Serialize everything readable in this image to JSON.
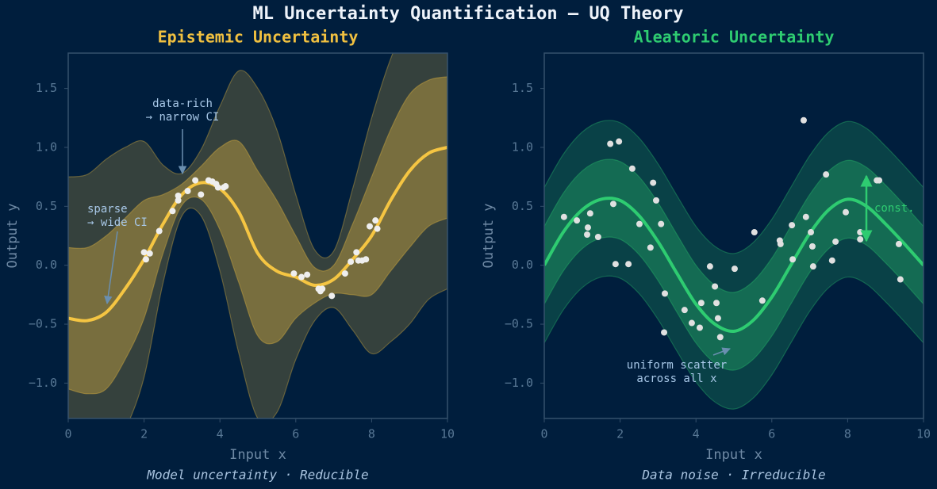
{
  "title": "ML Uncertainty Quantification  —  UQ Theory",
  "chart_data": [
    {
      "type": "line",
      "title": "Epistemic Uncertainty",
      "title_color": "#f0c040",
      "xlabel": "Input  x",
      "ylabel": "Output  y",
      "caption": "Model uncertainty  ·  Reducible",
      "x": [
        0,
        0.5,
        1,
        1.5,
        2,
        2.5,
        3,
        3.5,
        4,
        4.5,
        5,
        5.5,
        6,
        6.5,
        7,
        7.5,
        8,
        8.5,
        9,
        9.5,
        10
      ],
      "series": [
        {
          "color": "#f5c542",
          "values": [
            -0.45,
            -0.47,
            -0.4,
            -0.2,
            0.05,
            0.35,
            0.6,
            0.7,
            0.65,
            0.45,
            0.1,
            -0.05,
            -0.1,
            -0.17,
            -0.12,
            0.05,
            0.25,
            0.55,
            0.8,
            0.95,
            1.0
          ]
        }
      ],
      "bands": [
        {
          "color": "#f0c040",
          "opacity": 0.22,
          "lower": [
            -1.65,
            -1.71,
            -1.7,
            -1.4,
            -0.95,
            -0.15,
            0.42,
            0.42,
            -0.05,
            -0.75,
            -1.3,
            -1.25,
            -0.8,
            -0.47,
            -0.36,
            -0.55,
            -0.75,
            -0.65,
            -0.5,
            -0.29,
            -0.2
          ],
          "upper": [
            0.75,
            0.77,
            0.9,
            1.0,
            1.05,
            0.85,
            0.78,
            0.98,
            1.35,
            1.65,
            1.5,
            1.15,
            0.6,
            0.13,
            0.12,
            0.65,
            1.25,
            1.75,
            2.1,
            2.19,
            2.2
          ]
        },
        {
          "color": "#f0c040",
          "opacity": 0.36,
          "lower": [
            -1.05,
            -1.09,
            -1.05,
            -0.8,
            -0.45,
            0.1,
            0.51,
            0.56,
            0.3,
            -0.15,
            -0.6,
            -0.65,
            -0.45,
            -0.32,
            -0.24,
            -0.25,
            -0.25,
            -0.05,
            0.15,
            0.33,
            0.4
          ],
          "upper": [
            0.15,
            0.15,
            0.25,
            0.4,
            0.55,
            0.6,
            0.69,
            0.84,
            1.0,
            1.05,
            0.8,
            0.55,
            0.25,
            -0.02,
            0.0,
            0.35,
            0.75,
            1.15,
            1.45,
            1.57,
            1.6
          ]
        }
      ],
      "points": {
        "color": "#eeeeee",
        "x": [
          2.0,
          2.05,
          2.15,
          2.4,
          2.75,
          2.9,
          2.9,
          3.15,
          3.35,
          3.5,
          3.7,
          3.8,
          3.9,
          3.95,
          4.1,
          4.15,
          5.95,
          6.15,
          6.3,
          6.6,
          6.65,
          6.7,
          6.95,
          7.3,
          7.45,
          7.6,
          7.65,
          7.75,
          7.85,
          7.95,
          8.1,
          8.15
        ],
        "y": [
          0.11,
          0.05,
          0.1,
          0.29,
          0.46,
          0.55,
          0.59,
          0.63,
          0.72,
          0.6,
          0.72,
          0.71,
          0.69,
          0.66,
          0.66,
          0.67,
          -0.07,
          -0.1,
          -0.08,
          -0.2,
          -0.22,
          -0.2,
          -0.26,
          -0.07,
          0.03,
          0.11,
          0.04,
          0.04,
          0.05,
          0.33,
          0.38,
          0.31
        ]
      },
      "annotations": [
        {
          "lines": [
            "data-rich",
            "→ narrow CI"
          ],
          "color": "#a8c8e8"
        },
        {
          "lines": [
            "sparse",
            "→ wide CI"
          ],
          "color": "#a8c8e8"
        }
      ],
      "xlim": [
        0,
        10
      ],
      "ylim": [
        -1.3,
        1.8
      ],
      "xticks": [
        0,
        2,
        4,
        6,
        8,
        10
      ],
      "yticks": [
        {
          "value": -1.0,
          "label": "−1.0"
        },
        {
          "value": -0.5,
          "label": "−0.5"
        },
        {
          "value": 0,
          "label": "0.0"
        },
        0.5,
        {
          "value": 1,
          "label": "1.0"
        },
        1.5
      ]
    },
    {
      "type": "line",
      "title": "Aleatoric Uncertainty",
      "title_color": "#2ecc71",
      "xlabel": "Input  x",
      "ylabel": "Output  y",
      "caption": "Data noise  ·  Irreducible",
      "x": [
        0,
        0.5,
        1,
        1.5,
        2,
        2.5,
        3,
        3.5,
        4,
        4.5,
        5,
        5.5,
        6,
        6.5,
        7,
        7.5,
        8,
        8.5,
        9,
        9.5,
        10
      ],
      "series": [
        {
          "color": "#2ecc71",
          "values": [
            0,
            0.28,
            0.47,
            0.56,
            0.55,
            0.42,
            0.2,
            -0.07,
            -0.33,
            -0.5,
            -0.56,
            -0.47,
            -0.27,
            0.0,
            0.27,
            0.47,
            0.56,
            0.5,
            0.35,
            0.18,
            0.0
          ]
        }
      ],
      "bands": [
        {
          "color": "#2ecc71",
          "opacity": 0.2,
          "lower": [
            -0.66,
            -0.38,
            -0.19,
            -0.1,
            -0.11,
            -0.24,
            -0.46,
            -0.73,
            -0.99,
            -1.16,
            -1.22,
            -1.13,
            -0.93,
            -0.66,
            -0.39,
            -0.19,
            -0.1,
            -0.16,
            -0.31,
            -0.48,
            -0.66
          ],
          "upper": [
            0.66,
            0.94,
            1.13,
            1.22,
            1.21,
            1.08,
            0.86,
            0.59,
            0.33,
            0.16,
            0.1,
            0.19,
            0.39,
            0.66,
            0.93,
            1.13,
            1.22,
            1.16,
            1.01,
            0.84,
            0.66
          ]
        },
        {
          "color": "#2ecc71",
          "opacity": 0.3,
          "lower": [
            -0.33,
            -0.05,
            0.14,
            0.23,
            0.22,
            0.09,
            -0.13,
            -0.4,
            -0.66,
            -0.83,
            -0.89,
            -0.8,
            -0.6,
            -0.33,
            -0.06,
            0.14,
            0.23,
            0.17,
            0.02,
            -0.15,
            -0.33
          ],
          "upper": [
            0.33,
            0.61,
            0.8,
            0.89,
            0.88,
            0.75,
            0.53,
            0.26,
            0.0,
            -0.17,
            -0.23,
            -0.14,
            0.06,
            0.33,
            0.6,
            0.8,
            0.89,
            0.83,
            0.68,
            0.51,
            0.33
          ]
        }
      ],
      "points": {
        "color": "#e0e0e0",
        "x": [
          0.52,
          0.86,
          1.15,
          1.21,
          1.13,
          1.42,
          1.74,
          1.97,
          1.82,
          1.88,
          2.22,
          2.32,
          2.51,
          2.8,
          2.87,
          2.95,
          3.08,
          3.18,
          3.16,
          3.7,
          3.89,
          4.1,
          4.14,
          4.37,
          4.5,
          4.54,
          4.58,
          4.64,
          5.02,
          5.54,
          5.75,
          6.21,
          6.23,
          6.53,
          6.55,
          6.84,
          6.9,
          7.03,
          7.07,
          7.09,
          7.43,
          7.59,
          7.68,
          7.95,
          8.33,
          8.33,
          8.77,
          8.83,
          9.35,
          9.39
        ],
        "y": [
          0.41,
          0.38,
          0.32,
          0.44,
          0.26,
          0.24,
          1.03,
          1.05,
          0.52,
          0.01,
          0.01,
          0.82,
          0.35,
          0.15,
          0.7,
          0.55,
          0.35,
          -0.24,
          -0.57,
          -0.38,
          -0.49,
          -0.53,
          -0.32,
          -0.01,
          -0.18,
          -0.32,
          -0.45,
          -0.61,
          -0.03,
          0.28,
          -0.3,
          0.21,
          0.18,
          0.34,
          0.05,
          1.23,
          0.41,
          0.28,
          0.16,
          -0.01,
          0.77,
          0.04,
          0.2,
          0.45,
          0.28,
          0.22,
          0.72,
          0.72,
          0.18,
          -0.12
        ]
      },
      "annotations": [
        {
          "lines": [
            "const."
          ],
          "color": "#2ecc71"
        },
        {
          "lines": [
            "uniform scatter",
            "across all x"
          ],
          "color": "#a8c8e8"
        }
      ],
      "xlim": [
        0,
        10
      ],
      "ylim": [
        -1.3,
        1.8
      ],
      "xticks": [
        0,
        2,
        4,
        6,
        8,
        10
      ],
      "yticks": [
        {
          "value": -1.0,
          "label": "−1.0"
        },
        {
          "value": -0.5,
          "label": "−0.5"
        },
        {
          "value": 0,
          "label": "0.0"
        },
        0.5,
        {
          "value": 1,
          "label": "1.0"
        },
        1.5
      ]
    }
  ]
}
